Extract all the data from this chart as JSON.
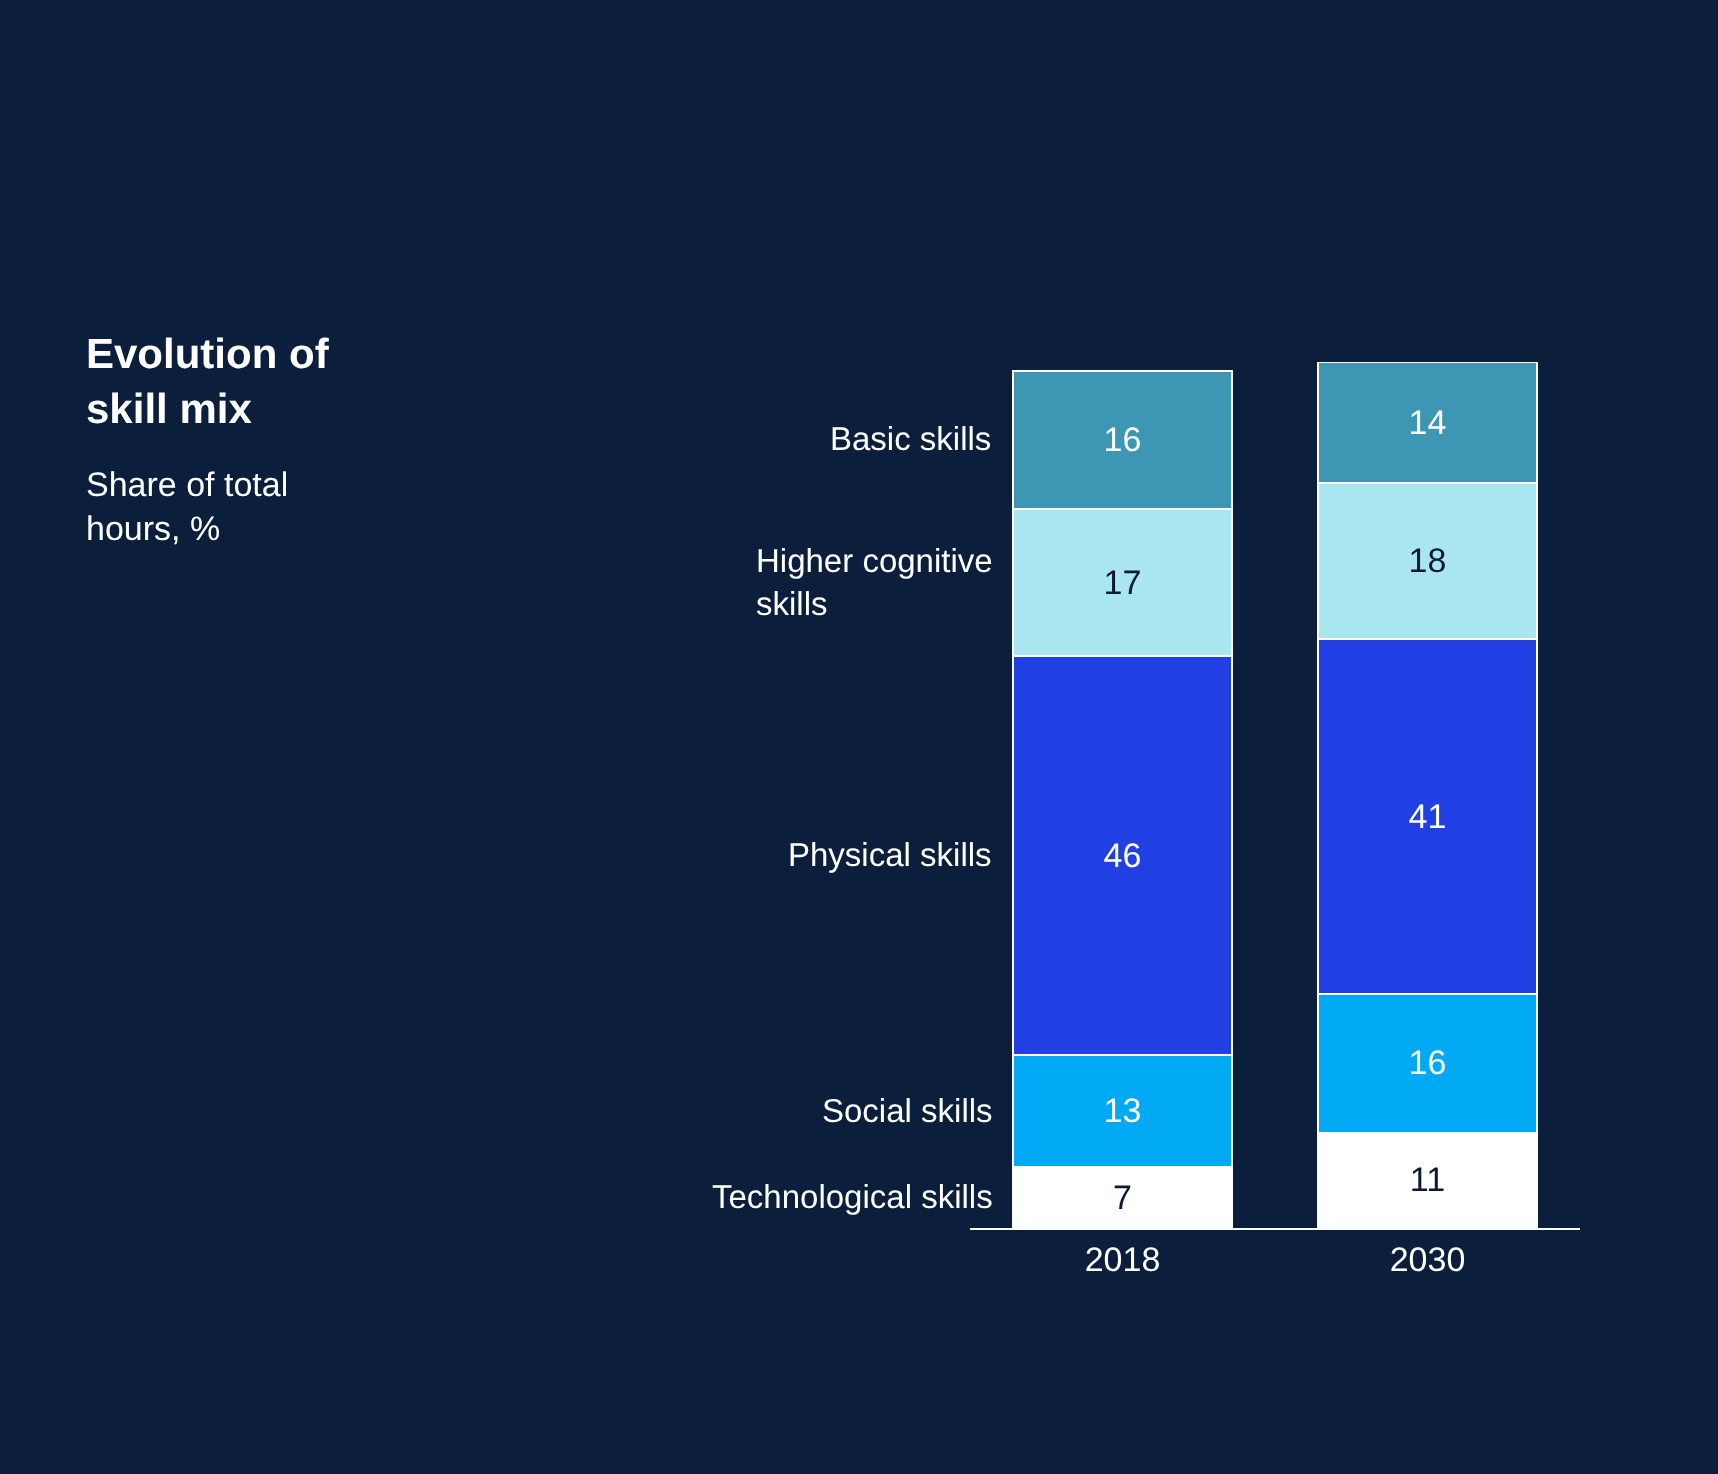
{
  "chart_data": {
    "type": "bar",
    "title": "Evolution of\nskill mix",
    "subtitle": "Share of total\nhours, %",
    "categories": [
      "2018",
      "2030"
    ],
    "stacked": true,
    "data_labels": true,
    "legend": false,
    "grid": false,
    "series": [
      {
        "name": "Technological skills",
        "color": "#ffffff",
        "values": [
          7,
          11
        ]
      },
      {
        "name": "Social skills",
        "color": "#00a9f4",
        "values": [
          13,
          16
        ]
      },
      {
        "name": "Physical skills",
        "color": "#2140e3",
        "values": [
          46,
          41
        ]
      },
      {
        "name": "Higher cognitive\nskills",
        "color": "#aae6f0",
        "values": [
          17,
          18
        ]
      },
      {
        "name": "Basic skills",
        "color": "#3c96b4",
        "values": [
          16,
          14
        ]
      }
    ]
  }
}
